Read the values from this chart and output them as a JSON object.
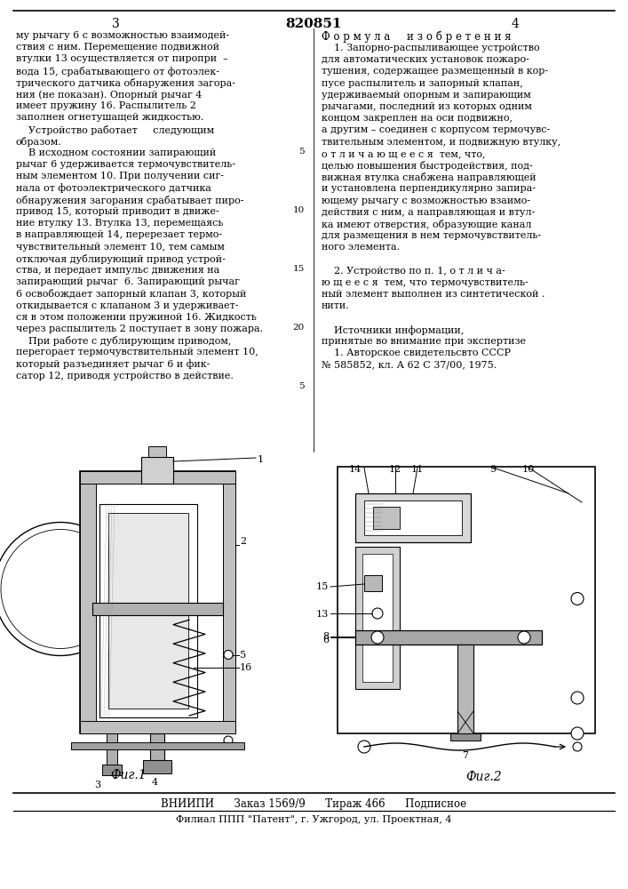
{
  "page_number_left": "3",
  "patent_number": "820851",
  "page_number_right": "4",
  "formula_title": "Ф о р м у л а     и з о б р е т е н и я",
  "left_col_lines": [
    "му рычагу 6 с возможностью взаимодей-",
    "ствия с ним. Перемещение подвижной",
    "втулки 13 осуществляется от пиропри  –",
    "вода 15, срабатывающего от фотоэлек-",
    "трического датчика обнаружения загора-",
    "ния (не показан). Опорный рычаг 4",
    "имеет пружину 16. Распылитель 2",
    "заполнен огнетушащей жидкостью.",
    "    Устройство работает     следующим",
    "образом.",
    "    В исходном состоянии запирающий",
    "рычаг 6 удерживается термочувствитель-",
    "ным элементом 10. При получении сиг-",
    "нала от фотоэлектрического датчика",
    "обнаружения загорания срабатывает пиро-",
    "привод 15, который приводит в движе-",
    "ние втулку 13. Втулка 13, перемещаясь",
    "в направляющей 14, перерезает термо-",
    "чувствительный элемент 10, тем самым",
    "отключая дублирующий привод устрой-",
    "ства, и передает импульс движения на",
    "запирающий рычаг  6. Запирающий рычаг",
    "6 освобождает запорный клапан 3, который",
    "откидывается с клапаном 3 и удерживает-",
    "ся в этом положении пружиной 16. Жидкость",
    "через распылитель 2 поступает в зону пожара.",
    "    При работе с дублирующим приводом,",
    "перегорает термочувствительный элемент 10,",
    "который разъединяет рычаг 6 и фик-",
    "сатор 12, приводя устройство в действие."
  ],
  "right_col_lines": [
    "    1. Запорно-распыливающее устройство",
    "для автоматических установок пожаро-",
    "тушения, содержащее размещенный в кор-",
    "пусе распылитель и запорный клапан,",
    "удерживаемый опорным и запирающим",
    "рычагами, последний из которых одним",
    "концом закреплен на оси подвижно,",
    "а другим – соединен с корпусом термочувс-",
    "твительным элементом, и подвижную втулку,",
    "о т л и ч а ю щ е е с я  тем, что,",
    "целью повышения быстродействия, под-",
    "вижная втулка снабжена направляющей",
    "и установлена перпендикулярно запира-",
    "ющему рычагу с возможностью взаимо-",
    "действия с ним, а направляющая и втул-",
    "ка имеют отверстия, образующие канал",
    "для размещения в нем термочувствитель-",
    "ного элемента.",
    "",
    "    2. Устройство по п. 1, о т л и ч а-",
    "ю щ е е с я  тем, что термочувствитель-",
    "ный элемент выполнен из синтетической .",
    "нити.",
    "",
    "    Источники информации,",
    "принятые во внимание при экспертизе",
    "    1. Авторское свидетельсвто СССР",
    "№ 585852, кл. А 62 С 37/00, 1975."
  ],
  "line_numbers_right": [
    "5",
    "10",
    "15",
    "20",
    "5"
  ],
  "fig1_label": "Фиг.1",
  "fig2_label": "Фиг.2",
  "footer_line1": "ВНИИПИ      Заказ 1569/9      Тираж 466      Подписное",
  "footer_line2": "Филиал ППП \"Патент\", г. Ужгород, ул. Проектная, 4",
  "bg_color": "#ffffff"
}
